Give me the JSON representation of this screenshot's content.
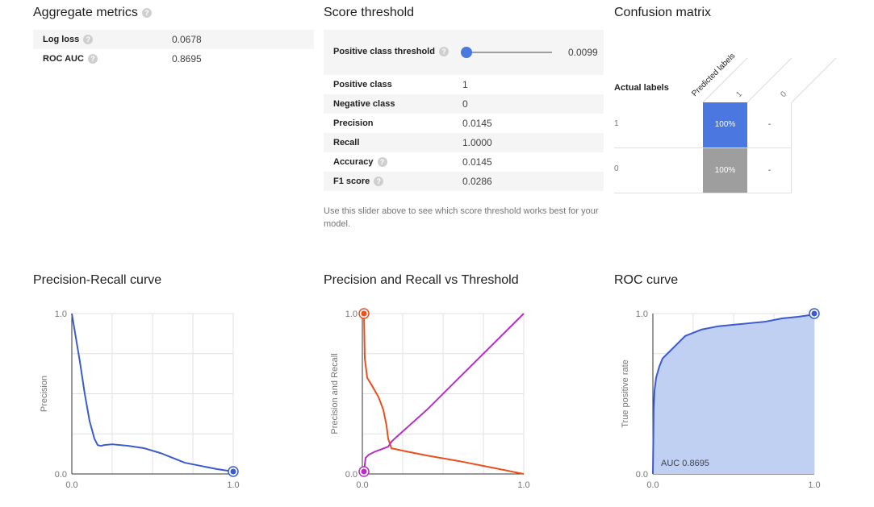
{
  "aggregate": {
    "title": "Aggregate metrics",
    "rows": [
      {
        "label": "Log loss",
        "value": "0.0678"
      },
      {
        "label": "ROC AUC",
        "value": "0.8695"
      }
    ]
  },
  "threshold": {
    "title": "Score threshold",
    "slider_label": "Positive class threshold",
    "slider_value": "0.0099",
    "slider_fraction": 0.0099,
    "rows": [
      {
        "label": "Positive class",
        "value": "1"
      },
      {
        "label": "Negative class",
        "value": "0"
      },
      {
        "label": "Precision",
        "value": "0.0145"
      },
      {
        "label": "Recall",
        "value": "1.0000"
      },
      {
        "label": "Accuracy",
        "value": "0.0145"
      },
      {
        "label": "F1 score",
        "value": "0.0286"
      }
    ],
    "note": "Use this slider above to see which score threshold works best for your model."
  },
  "confusion": {
    "title": "Confusion matrix",
    "predicted_label": "Predicted labels",
    "actual_label": "Actual labels",
    "col_labels": [
      "1",
      "0"
    ],
    "row_labels": [
      "1",
      "0"
    ],
    "cells": [
      [
        "100%",
        "-"
      ],
      [
        "100%",
        "-"
      ]
    ],
    "colors": {
      "positive": "#4a77e0",
      "negative": "#9e9e9e"
    }
  },
  "help_glyph": "?",
  "chart_data": [
    {
      "type": "line",
      "title": "Precision-Recall curve",
      "xlabel": "",
      "ylabel": "Precision",
      "xlim": [
        0,
        1
      ],
      "ylim": [
        0,
        1
      ],
      "x_ticks": [
        "0.0",
        "1.0"
      ],
      "y_ticks": [
        "0.0",
        "1.0"
      ],
      "grid": true,
      "series": [
        {
          "color": "#3b5bcc",
          "x": [
            0.0,
            0.02,
            0.05,
            0.08,
            0.11,
            0.14,
            0.16,
            0.18,
            0.2,
            0.25,
            0.35,
            0.45,
            0.55,
            0.6,
            0.65,
            0.7,
            0.8,
            0.9,
            1.0
          ],
          "y": [
            1.0,
            0.88,
            0.7,
            0.5,
            0.33,
            0.22,
            0.18,
            0.175,
            0.18,
            0.185,
            0.175,
            0.16,
            0.13,
            0.11,
            0.09,
            0.07,
            0.05,
            0.03,
            0.015
          ]
        }
      ],
      "marker": {
        "x": 1.0,
        "y": 0.015
      }
    },
    {
      "type": "line",
      "title": "Precision and Recall vs Threshold",
      "xlabel": "",
      "ylabel": "Precision and Recall",
      "xlim": [
        0,
        1
      ],
      "ylim": [
        0,
        1
      ],
      "x_ticks": [
        "0.0",
        "1.0"
      ],
      "y_ticks": [
        "0.0",
        "1.0"
      ],
      "grid": true,
      "series": [
        {
          "color": "#e8501f",
          "x": [
            0.01,
            0.015,
            0.03,
            0.06,
            0.1,
            0.13,
            0.15,
            0.16,
            0.18,
            0.25,
            0.4,
            0.6,
            0.8,
            1.0
          ],
          "y": [
            1.0,
            0.72,
            0.6,
            0.55,
            0.48,
            0.4,
            0.3,
            0.22,
            0.16,
            0.145,
            0.115,
            0.08,
            0.04,
            0.0
          ]
        },
        {
          "color": "#b52fc4",
          "x": [
            0.01,
            0.02,
            0.04,
            0.08,
            0.12,
            0.16,
            0.18,
            0.2,
            0.4,
            0.6,
            0.8,
            1.0
          ],
          "y": [
            0.015,
            0.1,
            0.12,
            0.14,
            0.155,
            0.17,
            0.2,
            0.22,
            0.4,
            0.6,
            0.8,
            1.0
          ]
        }
      ],
      "markers": [
        {
          "x": 0.01,
          "y": 1.0,
          "color": "#e8501f"
        },
        {
          "x": 0.01,
          "y": 0.015,
          "color": "#b52fc4"
        }
      ]
    },
    {
      "type": "area",
      "title": "ROC curve",
      "xlabel": "",
      "ylabel": "True positive rate",
      "xlim": [
        0,
        1
      ],
      "ylim": [
        0,
        1
      ],
      "x_ticks": [
        "0.0",
        "1.0"
      ],
      "y_ticks": [
        "0.0",
        "1.0"
      ],
      "grid": true,
      "annotation": "AUC 0.8695",
      "series": [
        {
          "color": "#3b5bcc",
          "fill": "#c0d0f2",
          "x": [
            0.0,
            0.005,
            0.01,
            0.02,
            0.04,
            0.06,
            0.1,
            0.15,
            0.2,
            0.3,
            0.4,
            0.5,
            0.6,
            0.7,
            0.8,
            0.9,
            0.97,
            1.0
          ],
          "y": [
            0.0,
            0.4,
            0.52,
            0.6,
            0.67,
            0.72,
            0.76,
            0.81,
            0.86,
            0.9,
            0.92,
            0.93,
            0.94,
            0.95,
            0.97,
            0.98,
            0.99,
            1.0
          ]
        }
      ],
      "marker": {
        "x": 1.0,
        "y": 1.0
      }
    }
  ]
}
